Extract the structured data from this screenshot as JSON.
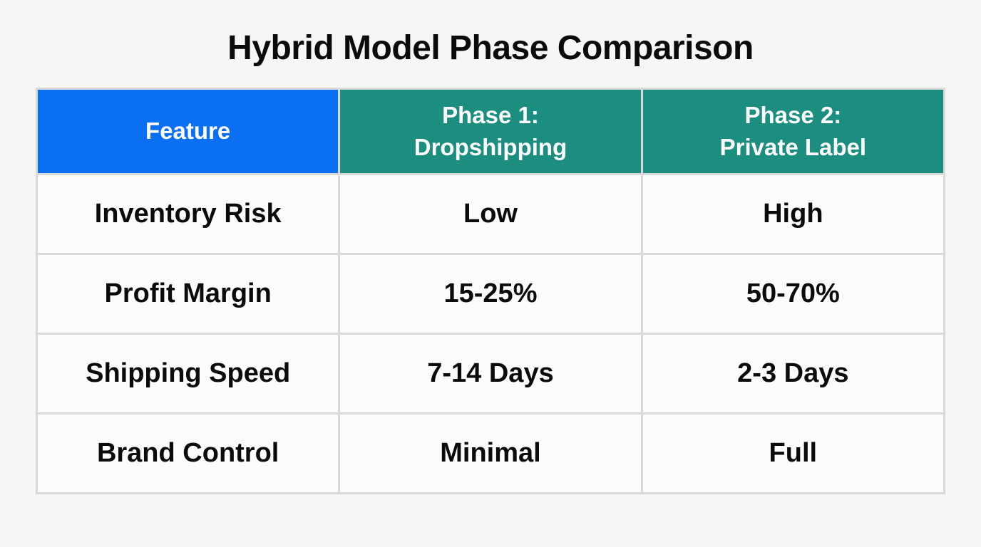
{
  "page": {
    "title": "Hybrid Model Phase Comparison",
    "background_color": "#f6f6f4"
  },
  "table": {
    "colors": {
      "feature_header_bg": "#0b6ff2",
      "phase_header_bg": "#1b8e7f",
      "cell_bg": "#fcfcfc",
      "border": "#d9d9d9",
      "header_text": "#ffffff",
      "body_text": "#0b0b0b"
    },
    "header": {
      "feature": "Feature",
      "phase1_line1": "Phase 1:",
      "phase1_line2": "Dropshipping",
      "phase2_line1": "Phase 2:",
      "phase2_line2": "Private Label"
    },
    "rows": [
      {
        "feature": "Inventory Risk",
        "phase1": "Low",
        "phase2": "High"
      },
      {
        "feature": "Profit Margin",
        "phase1": "15-25%",
        "phase2": "50-70%"
      },
      {
        "feature": "Shipping Speed",
        "phase1": "7-14 Days",
        "phase2": "2-3 Days"
      },
      {
        "feature": "Brand Control",
        "phase1": "Minimal",
        "phase2": "Full"
      }
    ]
  }
}
